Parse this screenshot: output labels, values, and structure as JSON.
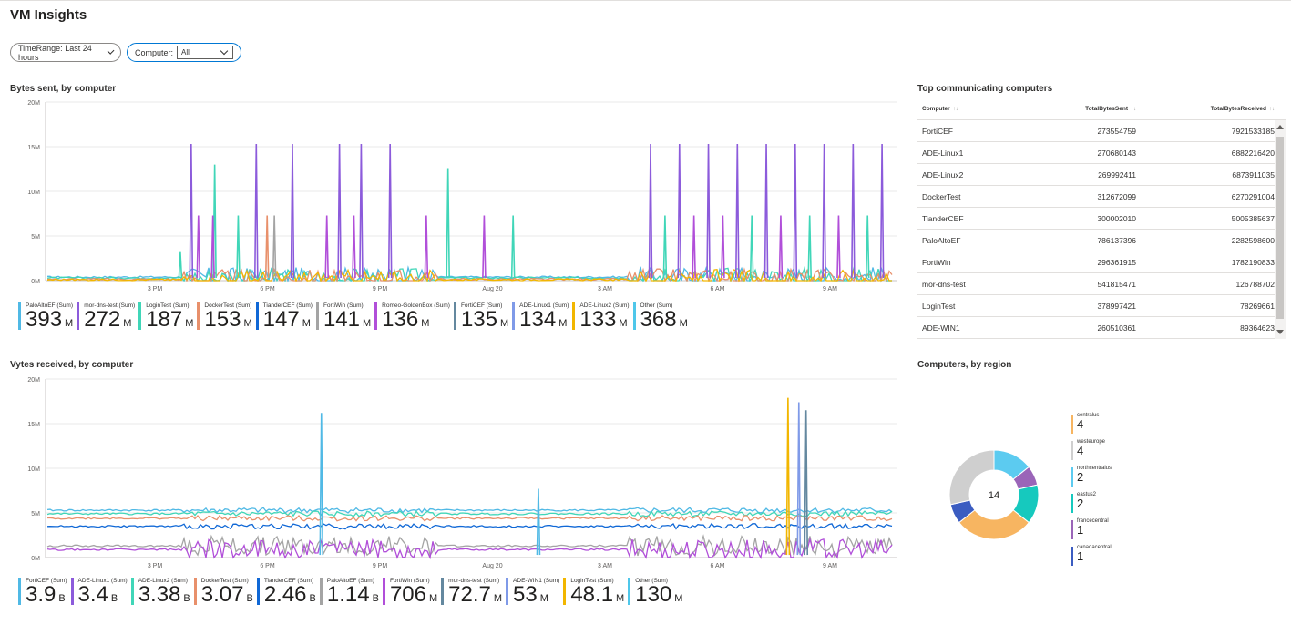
{
  "page": {
    "title": "VM Insights"
  },
  "params": {
    "timerange_label": "TimeRange: Last 24 hours",
    "computer_label": "Computer:",
    "computer_value": "All"
  },
  "colors": {
    "c1": "#50b9e5",
    "c2": "#8c5bdb",
    "c3": "#40d6b8",
    "c4": "#e8906b",
    "c5": "#1068d6",
    "c6": "#a4a4a4",
    "c7": "#b14fd9",
    "c8": "#64889f",
    "c9": "#7f9ae8",
    "c10": "#f2b600",
    "c11": "#4fc7ea"
  },
  "bytes_sent": {
    "title": "Bytes sent, by computer",
    "legend": [
      {
        "label": "PaloAltoEF (Sum)",
        "value": "393",
        "unit": "M",
        "color": "#50b9e5"
      },
      {
        "label": "mor-dns-test (Sum)",
        "value": "272",
        "unit": "M",
        "color": "#8c5bdb"
      },
      {
        "label": "LoginTest (Sum)",
        "value": "187",
        "unit": "M",
        "color": "#40d6b8"
      },
      {
        "label": "DockerTest (Sum)",
        "value": "153",
        "unit": "M",
        "color": "#e8906b"
      },
      {
        "label": "TianderCEF (Sum)",
        "value": "147",
        "unit": "M",
        "color": "#1068d6"
      },
      {
        "label": "FortiWin (Sum)",
        "value": "141",
        "unit": "M",
        "color": "#a4a4a4"
      },
      {
        "label": "Romeo-GoldenBox (Sum)",
        "value": "136",
        "unit": "M",
        "color": "#b14fd9"
      },
      {
        "label": "FortiCEF (Sum)",
        "value": "135",
        "unit": "M",
        "color": "#64889f"
      },
      {
        "label": "ADE-Linux1 (Sum)",
        "value": "134",
        "unit": "M",
        "color": "#7f9ae8"
      },
      {
        "label": "ADE-Linux2 (Sum)",
        "value": "133",
        "unit": "M",
        "color": "#f2b600"
      },
      {
        "label": "Other (Sum)",
        "value": "368",
        "unit": "M",
        "color": "#4fc7ea"
      }
    ]
  },
  "bytes_received": {
    "title": "Vytes received, by computer",
    "legend": [
      {
        "label": "FortiCEF (Sum)",
        "value": "3.9",
        "unit": "B",
        "color": "#50b9e5"
      },
      {
        "label": "ADE-Linux1 (Sum)",
        "value": "3.4",
        "unit": "B",
        "color": "#8c5bdb"
      },
      {
        "label": "ADE-Linux2 (Sum)",
        "value": "3.38",
        "unit": "B",
        "color": "#40d6b8"
      },
      {
        "label": "DockerTest (Sum)",
        "value": "3.07",
        "unit": "B",
        "color": "#e8906b"
      },
      {
        "label": "TianderCEF (Sum)",
        "value": "2.46",
        "unit": "B",
        "color": "#1068d6"
      },
      {
        "label": "PaloAltoEF (Sum)",
        "value": "1.14",
        "unit": "B",
        "color": "#a4a4a4"
      },
      {
        "label": "FortiWin (Sum)",
        "value": "706",
        "unit": "M",
        "color": "#b14fd9"
      },
      {
        "label": "mor-dns-test (Sum)",
        "value": "72.7",
        "unit": "M",
        "color": "#64889f"
      },
      {
        "label": "ADE-WIN1 (Sum)",
        "value": "53",
        "unit": "M",
        "color": "#7f9ae8"
      },
      {
        "label": "LoginTest (Sum)",
        "value": "48.1",
        "unit": "M",
        "color": "#f2b600"
      },
      {
        "label": "Other (Sum)",
        "value": "130",
        "unit": "M",
        "color": "#4fc7ea"
      }
    ]
  },
  "top_table": {
    "title": "Top communicating computers",
    "headers": [
      "Computer",
      "TotalBytesSent",
      "TotalBytesReceived"
    ],
    "rows": [
      [
        "FortiCEF",
        "273554759",
        "7921533185"
      ],
      [
        "ADE-Linux1",
        "270680143",
        "6882216420"
      ],
      [
        "ADE-Linux2",
        "269992411",
        "6873911035"
      ],
      [
        "DockerTest",
        "312672099",
        "6270291004"
      ],
      [
        "TianderCEF",
        "300002010",
        "5005385637"
      ],
      [
        "PaloAltoEF",
        "786137396",
        "2282598600"
      ],
      [
        "FortiWin",
        "296361915",
        "1782190833"
      ],
      [
        "mor-dns-test",
        "541815471",
        "126788702"
      ],
      [
        "LoginTest",
        "378997421",
        "78269661"
      ],
      [
        "ADE-WIN1",
        "260510361",
        "89364623"
      ]
    ]
  },
  "regions": {
    "title": "Computers, by region",
    "total": "14",
    "items": [
      {
        "label": "centralus",
        "value": "4",
        "color": "#f7b561"
      },
      {
        "label": "westeurope",
        "value": "4",
        "color": "#cfcfcf"
      },
      {
        "label": "northcentralus",
        "value": "2",
        "color": "#5ccbf0"
      },
      {
        "label": "eastus2",
        "value": "2",
        "color": "#16c9be"
      },
      {
        "label": "francecentral",
        "value": "1",
        "color": "#9a65b8"
      },
      {
        "label": "canadacentral",
        "value": "1",
        "color": "#3b5cc1"
      }
    ]
  },
  "chart_data": [
    {
      "type": "line",
      "title": "Bytes sent, by computer",
      "yticks": [
        "20M",
        "15M",
        "10M",
        "5M",
        "0M"
      ],
      "ylim": [
        0,
        20
      ],
      "xticks": [
        "3 PM",
        "6 PM",
        "9 PM",
        "Aug 20",
        "3 AM",
        "6 AM",
        "9 AM"
      ],
      "baselines": [
        {
          "name": "PaloAltoEF (Sum)",
          "level": 0.4
        },
        {
          "name": "LoginTest (Sum)",
          "level": 0.3
        },
        {
          "name": "DockerTest (Sum)",
          "level": 0.15
        },
        {
          "name": "ADE-Linux2 (Sum)",
          "level": 0.1
        }
      ],
      "spikes": [
        {
          "x": 0.36,
          "y": 3.2,
          "series": "LoginTest (Sum)"
        },
        {
          "x": 0.39,
          "y": 15.3,
          "series": "mor-dns-test (Sum)"
        },
        {
          "x": 0.455,
          "y": 13.0,
          "series": "LoginTest (Sum)"
        },
        {
          "x": 0.41,
          "y": 7.3,
          "series": "Romeo-GoldenBox (Sum)"
        },
        {
          "x": 0.45,
          "y": 7.3,
          "series": "Romeo-GoldenBox (Sum)"
        },
        {
          "x": 0.52,
          "y": 7.3,
          "series": "LoginTest (Sum)"
        },
        {
          "x": 0.57,
          "y": 15.3,
          "series": "mor-dns-test (Sum)"
        },
        {
          "x": 0.6,
          "y": 7.3,
          "series": "DockerTest (Sum)"
        },
        {
          "x": 0.62,
          "y": 7.3,
          "series": "FortiWin (Sum)"
        },
        {
          "x": 0.67,
          "y": 15.3,
          "series": "mor-dns-test (Sum)"
        },
        {
          "x": 0.765,
          "y": 7.3,
          "series": "Romeo-GoldenBox (Sum)"
        },
        {
          "x": 0.8,
          "y": 15.3,
          "series": "mor-dns-test (Sum)"
        },
        {
          "x": 0.84,
          "y": 7.3,
          "series": "Romeo-GoldenBox (Sum)"
        },
        {
          "x": 0.86,
          "y": 15.3,
          "series": "mor-dns-test (Sum)"
        },
        {
          "x": 0.94,
          "y": 15.3,
          "series": "mor-dns-test (Sum)"
        },
        {
          "x": 1.04,
          "y": 7.3,
          "series": "Romeo-GoldenBox (Sum)"
        },
        {
          "x": 1.1,
          "y": 12.6,
          "series": "LoginTest (Sum)"
        },
        {
          "x": 1.2,
          "y": 7.3,
          "series": "Romeo-GoldenBox (Sum)"
        },
        {
          "x": 1.28,
          "y": 7.3,
          "series": "LoginTest (Sum)"
        },
        {
          "x": 1.66,
          "y": 15.3,
          "series": "mor-dns-test (Sum)"
        },
        {
          "x": 1.7,
          "y": 7.3,
          "series": "LoginTest (Sum)"
        },
        {
          "x": 1.74,
          "y": 15.3,
          "series": "mor-dns-test (Sum)"
        },
        {
          "x": 1.78,
          "y": 7.3,
          "series": "Romeo-GoldenBox (Sum)"
        },
        {
          "x": 1.82,
          "y": 15.3,
          "series": "mor-dns-test (Sum)"
        },
        {
          "x": 1.86,
          "y": 7.3,
          "series": "Romeo-GoldenBox (Sum)"
        },
        {
          "x": 1.9,
          "y": 15.3,
          "series": "mor-dns-test (Sum)"
        },
        {
          "x": 1.94,
          "y": 7.3,
          "series": "LoginTest (Sum)"
        },
        {
          "x": 1.98,
          "y": 15.3,
          "series": "mor-dns-test (Sum)"
        },
        {
          "x": 2.02,
          "y": 7.3,
          "series": "Romeo-GoldenBox (Sum)"
        },
        {
          "x": 2.06,
          "y": 15.3,
          "series": "mor-dns-test (Sum)"
        },
        {
          "x": 2.1,
          "y": 7.3,
          "series": "LoginTest (Sum)"
        },
        {
          "x": 2.14,
          "y": 15.3,
          "series": "mor-dns-test (Sum)"
        },
        {
          "x": 2.18,
          "y": 7.3,
          "series": "Romeo-GoldenBox (Sum)"
        },
        {
          "x": 2.22,
          "y": 15.3,
          "series": "mor-dns-test (Sum)"
        },
        {
          "x": 2.26,
          "y": 7.3,
          "series": "LoginTest (Sum)"
        },
        {
          "x": 2.3,
          "y": 15.3,
          "series": "mor-dns-test (Sum)"
        }
      ]
    },
    {
      "type": "line",
      "title": "Vytes received, by computer",
      "yticks": [
        "20M",
        "15M",
        "10M",
        "5M",
        "0M"
      ],
      "ylim": [
        0,
        20
      ],
      "xticks": [
        "3 PM",
        "6 PM",
        "9 PM",
        "Aug 20",
        "3 AM",
        "6 AM",
        "9 AM"
      ],
      "baselines": [
        {
          "name": "FortiCEF (Sum)",
          "level": 5.3
        },
        {
          "name": "ADE-Linux2 (Sum)",
          "level": 4.9
        },
        {
          "name": "DockerTest (Sum)",
          "level": 4.4
        },
        {
          "name": "TianderCEF (Sum)",
          "level": 3.5
        },
        {
          "name": "PaloAltoEF (Sum)",
          "level": 1.3
        },
        {
          "name": "FortiWin (Sum)",
          "level": 0.9
        }
      ],
      "spikes": [
        {
          "x": 0.75,
          "y": 16.2,
          "series": "FortiCEF (Sum)"
        },
        {
          "x": 1.35,
          "y": 7.7,
          "series": "FortiCEF (Sum)"
        },
        {
          "x": 2.04,
          "y": 17.9,
          "series": "LoginTest (Sum)"
        },
        {
          "x": 2.07,
          "y": 17.4,
          "series": "ADE-WIN1 (Sum)"
        },
        {
          "x": 2.09,
          "y": 16.5,
          "series": "mor-dns-test (Sum)"
        }
      ]
    },
    {
      "type": "pie",
      "title": "Computers, by region",
      "labels": [
        "centralus",
        "westeurope",
        "northcentralus",
        "eastus2",
        "francecentral",
        "canadacentral"
      ],
      "values": [
        4,
        4,
        2,
        2,
        1,
        1
      ],
      "total": 14
    }
  ]
}
